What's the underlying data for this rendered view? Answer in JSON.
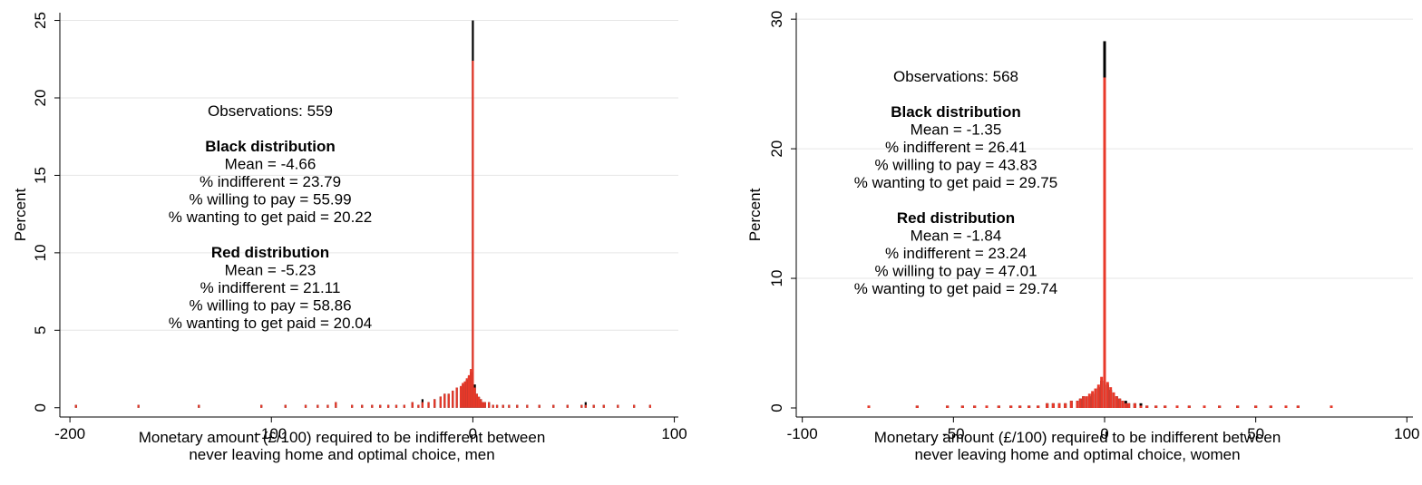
{
  "chart_data": [
    {
      "type": "bar",
      "title": "",
      "xlabel_lines": [
        "Monetary amount (£/100) required to be indifferent between",
        "never leaving home and optimal choice, men"
      ],
      "ylabel": "Percent",
      "xlim": [
        -205,
        102
      ],
      "ylim": [
        -0.6,
        25.5
      ],
      "xticks": [
        -200,
        -100,
        0,
        100
      ],
      "yticks": [
        0,
        5,
        10,
        15,
        20,
        25
      ],
      "grid": true,
      "legend": "none",
      "colors": {
        "black": "#000000",
        "red": "#e8392a",
        "grid": "#e6e6e6"
      },
      "annotation": {
        "observations": "Observations: 559",
        "black_heading": "Black distribution",
        "black_lines": [
          "Mean = -4.66",
          "% indifferent = 23.79",
          "% willing to pay = 55.99",
          "% wanting to get paid = 20.22"
        ],
        "red_heading": "Red distribution",
        "red_lines": [
          "Mean = -5.23",
          "% indifferent = 21.11",
          "% willing to pay = 58.86",
          "% wanting to get paid = 20.04"
        ]
      },
      "series": [
        {
          "color": "black",
          "x": [
            -197,
            -166,
            -136,
            -105,
            -93,
            -83,
            -77,
            -72,
            -68,
            -60,
            -55,
            -50,
            -46,
            -42,
            -38,
            -34,
            -30,
            -27,
            -25,
            -22,
            -19,
            -16,
            -14,
            -12,
            -10,
            -8,
            -6,
            -5,
            -4,
            -3,
            -2,
            -1,
            0,
            1,
            2,
            3,
            4,
            5,
            6,
            8,
            10,
            12,
            15,
            18,
            22,
            27,
            33,
            40,
            47,
            54,
            56,
            60,
            65,
            72,
            80,
            88
          ],
          "y": [
            0.18,
            0.18,
            0.18,
            0.18,
            0.18,
            0.18,
            0.18,
            0.18,
            0.36,
            0.18,
            0.18,
            0.18,
            0.18,
            0.18,
            0.18,
            0.18,
            0.36,
            0.18,
            0.55,
            0.36,
            0.55,
            0.72,
            0.9,
            0.9,
            1.1,
            1.3,
            1.3,
            1.5,
            1.6,
            1.8,
            2.0,
            2.3,
            25.0,
            1.5,
            0.9,
            0.7,
            0.55,
            0.36,
            0.36,
            0.36,
            0.18,
            0.18,
            0.18,
            0.18,
            0.18,
            0.18,
            0.18,
            0.18,
            0.18,
            0.18,
            0.36,
            0.18,
            0.18,
            0.18,
            0.18,
            0.18
          ]
        },
        {
          "color": "red",
          "x": [
            -197,
            -166,
            -136,
            -105,
            -93,
            -83,
            -77,
            -72,
            -68,
            -60,
            -55,
            -50,
            -46,
            -42,
            -38,
            -34,
            -30,
            -27,
            -25,
            -22,
            -19,
            -16,
            -14,
            -12,
            -10,
            -8,
            -6,
            -5,
            -4,
            -3,
            -2,
            -1,
            0,
            1,
            2,
            3,
            4,
            5,
            6,
            8,
            10,
            12,
            15,
            18,
            22,
            27,
            33,
            40,
            47,
            54,
            56,
            60,
            65,
            72,
            80,
            88
          ],
          "y": [
            0.18,
            0.18,
            0.18,
            0.18,
            0.18,
            0.18,
            0.18,
            0.18,
            0.36,
            0.18,
            0.18,
            0.18,
            0.18,
            0.18,
            0.18,
            0.18,
            0.36,
            0.18,
            0.36,
            0.36,
            0.55,
            0.72,
            0.9,
            0.9,
            1.1,
            1.3,
            1.4,
            1.6,
            1.7,
            1.9,
            2.1,
            2.5,
            22.4,
            1.3,
            0.9,
            0.7,
            0.55,
            0.36,
            0.36,
            0.36,
            0.18,
            0.18,
            0.18,
            0.18,
            0.18,
            0.18,
            0.18,
            0.18,
            0.18,
            0.18,
            0.18,
            0.18,
            0.18,
            0.18,
            0.18,
            0.18
          ]
        }
      ]
    },
    {
      "type": "bar",
      "title": "",
      "xlabel_lines": [
        "Monetary amount (£/100) required to be indifferent between",
        "never leaving home and optimal choice, women"
      ],
      "ylabel": "Percent",
      "xlim": [
        -102,
        102
      ],
      "ylim": [
        -0.7,
        30.5
      ],
      "xticks": [
        -100,
        -50,
        0,
        50,
        100
      ],
      "yticks": [
        0,
        10,
        20,
        30
      ],
      "grid": true,
      "legend": "none",
      "colors": {
        "black": "#000000",
        "red": "#e8392a",
        "grid": "#e6e6e6"
      },
      "annotation": {
        "observations": "Observations: 568",
        "black_heading": "Black distribution",
        "black_lines": [
          "Mean = -1.35",
          "% indifferent = 26.41",
          "% willing to pay = 43.83",
          "% wanting to get paid = 29.75"
        ],
        "red_heading": "Red distribution",
        "red_lines": [
          "Mean = -1.84",
          "% indifferent = 23.24",
          "% willing to pay = 47.01",
          "% wanting to get paid = 29.74"
        ]
      },
      "series": [
        {
          "color": "black",
          "x": [
            -78,
            -62,
            -52,
            -47,
            -43,
            -39,
            -35,
            -31,
            -28,
            -25,
            -22,
            -19,
            -17,
            -15,
            -13,
            -11,
            -9,
            -8,
            -7,
            -6,
            -5,
            -4,
            -3,
            -2,
            -1,
            0,
            1,
            2,
            3,
            4,
            5,
            6,
            7,
            8,
            10,
            12,
            14,
            17,
            20,
            24,
            28,
            33,
            38,
            44,
            50,
            55,
            60,
            64,
            75
          ],
          "y": [
            0.18,
            0.18,
            0.18,
            0.18,
            0.18,
            0.18,
            0.18,
            0.18,
            0.18,
            0.18,
            0.18,
            0.36,
            0.36,
            0.36,
            0.36,
            0.55,
            0.55,
            0.72,
            0.9,
            0.72,
            0.9,
            1.1,
            1.3,
            1.6,
            2.1,
            28.3,
            1.8,
            1.4,
            1.1,
            0.9,
            0.72,
            0.55,
            0.55,
            0.36,
            0.36,
            0.36,
            0.18,
            0.18,
            0.18,
            0.18,
            0.18,
            0.18,
            0.18,
            0.18,
            0.18,
            0.18,
            0.18,
            0.18,
            0.18
          ]
        },
        {
          "color": "red",
          "x": [
            -78,
            -62,
            -52,
            -47,
            -43,
            -39,
            -35,
            -31,
            -28,
            -25,
            -22,
            -19,
            -17,
            -15,
            -13,
            -11,
            -9,
            -8,
            -7,
            -6,
            -5,
            -4,
            -3,
            -2,
            -1,
            0,
            1,
            2,
            3,
            4,
            5,
            6,
            7,
            8,
            10,
            12,
            14,
            17,
            20,
            24,
            28,
            33,
            38,
            44,
            50,
            55,
            60,
            64,
            75
          ],
          "y": [
            0.18,
            0.18,
            0.18,
            0.18,
            0.18,
            0.18,
            0.18,
            0.18,
            0.18,
            0.18,
            0.18,
            0.36,
            0.36,
            0.36,
            0.36,
            0.55,
            0.55,
            0.72,
            0.9,
            0.9,
            1.1,
            1.3,
            1.5,
            1.8,
            2.4,
            25.5,
            2.0,
            1.6,
            1.2,
            0.9,
            0.72,
            0.55,
            0.36,
            0.36,
            0.36,
            0.18,
            0.18,
            0.18,
            0.18,
            0.18,
            0.18,
            0.18,
            0.18,
            0.18,
            0.18,
            0.18,
            0.18,
            0.18,
            0.18
          ]
        }
      ]
    }
  ]
}
